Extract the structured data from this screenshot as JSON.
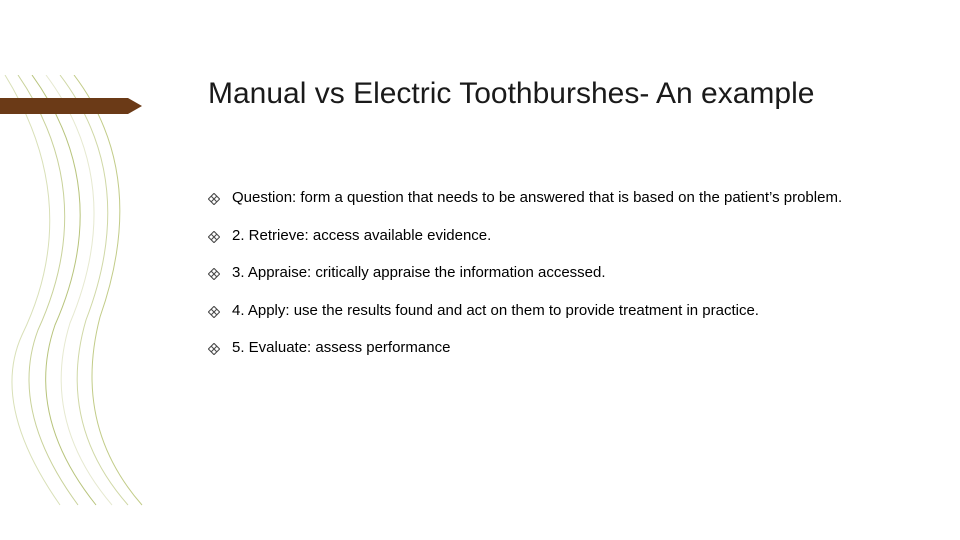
{
  "slide": {
    "title": "Manual vs Electric Toothburshes- An example",
    "title_color": "#1a1a1a",
    "title_fontsize": 30,
    "background_color": "#ffffff",
    "brown_bar_color": "#6b3a17",
    "body_text_color": "#000000",
    "body_fontsize": 15,
    "bullets": [
      {
        "text": "Question: form a question that needs to be answered that is based on the patient’s problem."
      },
      {
        "text": "2. Retrieve: access available evidence."
      },
      {
        "text": "3. Appraise: critically appraise the information accessed."
      },
      {
        "text": "4. Apply: use the results found and act on them to provide treatment in practice."
      },
      {
        "text": "5. Evaluate: assess performance"
      }
    ],
    "bullet_marker": {
      "fill": "#ffffff",
      "stroke": "#4a4a4a",
      "stroke_width": 1.1
    },
    "deco_lines": {
      "colors": [
        "#d9e0b8",
        "#c9d29a",
        "#b8c47c",
        "#e6e9d0",
        "#d0d8a6",
        "#c2cc88"
      ],
      "stroke_width": 1
    }
  }
}
